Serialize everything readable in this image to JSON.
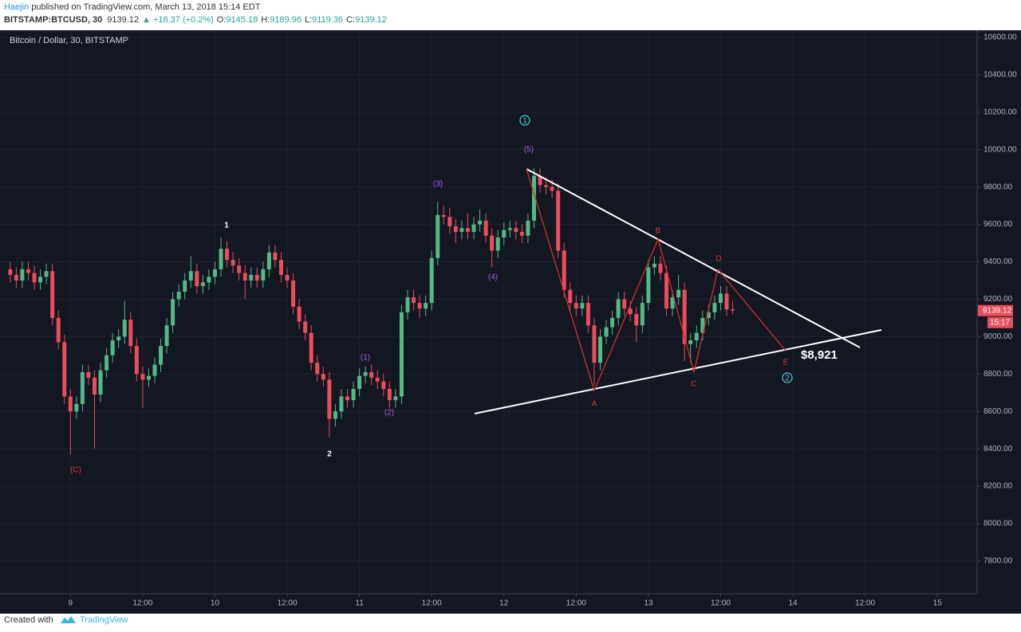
{
  "header": {
    "author": "Haejin",
    "published": " published on TradingView.com, March 13, 2018 15:14 EDT",
    "symbol": "BITSTAMP:BTCUSD, 30",
    "last": "9139.12",
    "change": "▲ +18.37 (+0.2%)",
    "o_label": "O:",
    "o": "9145.18",
    "h_label": "H:",
    "h": "9189.96",
    "l_label": "L:",
    "l": "9119.36",
    "c_label": "C:",
    "c": "9139.12"
  },
  "footer": {
    "text": "Created with",
    "brand": "TradingView"
  },
  "price_tag": {
    "price": "9139.12",
    "countdown": "15:17"
  },
  "annotations": [
    "1",
    "2",
    "(C)",
    "(1)",
    "(2)",
    "(3)",
    "(4)",
    "(5)",
    "1",
    "A",
    "B",
    "C",
    "D",
    "E",
    "2",
    "$8,921"
  ],
  "chart_data": {
    "type": "candlestick",
    "title": "Bitcoin / Dollar, 30, BITSTAMP",
    "up_color": "#53b987",
    "down_color": "#eb4d5c",
    "grid": true,
    "xlim": [
      -11.7,
      150.6
    ],
    "xticks": [
      {
        "value": 0,
        "label": "9"
      },
      {
        "value": 12,
        "label": "12:00"
      },
      {
        "value": 24,
        "label": "10"
      },
      {
        "value": 36,
        "label": "12:00"
      },
      {
        "value": 48,
        "label": "11"
      },
      {
        "value": 60,
        "label": "12:00"
      },
      {
        "value": 72,
        "label": "12"
      },
      {
        "value": 84,
        "label": "12:00"
      },
      {
        "value": 96,
        "label": "13"
      },
      {
        "value": 108,
        "label": "12:00"
      },
      {
        "value": 120,
        "label": "14"
      },
      {
        "value": 132,
        "label": "12:00"
      },
      {
        "value": 144,
        "label": "15"
      }
    ],
    "ylim": [
      7625,
      10638
    ],
    "yticks": [
      {
        "value": 7800,
        "label": "7800.00"
      },
      {
        "value": 8000,
        "label": "8000.00"
      },
      {
        "value": 8200,
        "label": "8200.00"
      },
      {
        "value": 8400,
        "label": "8400.00"
      },
      {
        "value": 8600,
        "label": "8600.00"
      },
      {
        "value": 8800,
        "label": "8800.00"
      },
      {
        "value": 9000,
        "label": "9000.00"
      },
      {
        "value": 9200,
        "label": "9200.00"
      },
      {
        "value": 9400,
        "label": "9400.00"
      },
      {
        "value": 9600,
        "label": "9600.00"
      },
      {
        "value": 9800,
        "label": "9800.00"
      },
      {
        "value": 10000,
        "label": "10000.00"
      },
      {
        "value": 10200,
        "label": "10200.00"
      },
      {
        "value": 10400,
        "label": "10400.00"
      },
      {
        "value": 10600,
        "label": "10600.00"
      }
    ],
    "x": [
      -10,
      -9,
      -8,
      -7,
      -6,
      -5,
      -4,
      -3,
      -2,
      -1,
      0,
      1,
      2,
      3,
      4,
      5,
      6,
      7,
      8,
      9,
      10,
      11,
      12,
      13,
      14,
      15,
      16,
      17,
      18,
      19,
      20,
      21,
      22,
      23,
      24,
      25,
      26,
      27,
      28,
      29,
      30,
      31,
      32,
      33,
      34,
      35,
      36,
      37,
      38,
      39,
      40,
      41,
      42,
      43,
      44,
      45,
      46,
      47,
      48,
      49,
      50,
      51,
      52,
      53,
      54,
      55,
      56,
      57,
      58,
      59,
      60,
      61,
      62,
      63,
      64,
      65,
      66,
      67,
      68,
      69,
      70,
      71,
      72,
      73,
      74,
      75,
      76,
      77,
      78,
      79,
      80,
      81,
      82,
      83,
      84,
      85,
      86,
      87,
      88,
      89,
      90,
      91,
      92,
      93,
      94,
      95,
      96,
      97,
      98,
      99,
      100,
      101,
      102,
      103,
      104,
      105,
      106,
      107,
      108,
      109,
      110
    ],
    "open": [
      9360,
      9330,
      9300,
      9360,
      9340,
      9290,
      9320,
      9350,
      9100,
      8970,
      8680,
      8600,
      8640,
      8810,
      8780,
      8690,
      8820,
      8900,
      8980,
      9000,
      9090,
      8950,
      8800,
      8770,
      8790,
      8850,
      8950,
      9060,
      9200,
      9240,
      9300,
      9350,
      9270,
      9290,
      9320,
      9360,
      9470,
      9410,
      9380,
      9340,
      9300,
      9330,
      9300,
      9360,
      9450,
      9410,
      9330,
      9300,
      9160,
      9080,
      9020,
      8860,
      8800,
      8770,
      8560,
      8600,
      8680,
      8660,
      8720,
      8790,
      8810,
      8780,
      8760,
      8720,
      8660,
      8680,
      9130,
      9210,
      9180,
      9150,
      9180,
      9420,
      9650,
      9640,
      9590,
      9560,
      9580,
      9560,
      9600,
      9620,
      9540,
      9460,
      9530,
      9570,
      9580,
      9560,
      9540,
      9620,
      9860,
      9810,
      9800,
      9780,
      9460,
      9250,
      9180,
      9150,
      9180,
      9060,
      8860,
      9000,
      9050,
      9100,
      9200,
      9150,
      9120,
      9060,
      9180,
      9370,
      9390,
      9340,
      9150,
      9210,
      9250,
      8960,
      8980,
      9020,
      9100,
      9130,
      9180,
      9230,
      9145.18
    ],
    "high": [
      9400,
      9370,
      9400,
      9400,
      9380,
      9360,
      9390,
      9390,
      9140,
      9010,
      8720,
      8680,
      8850,
      8850,
      8820,
      8860,
      8940,
      9020,
      9040,
      9190,
      9130,
      8990,
      8840,
      8830,
      8890,
      8990,
      9100,
      9240,
      9280,
      9340,
      9430,
      9390,
      9330,
      9360,
      9400,
      9530,
      9510,
      9450,
      9420,
      9380,
      9370,
      9370,
      9400,
      9490,
      9490,
      9450,
      9370,
      9340,
      9200,
      9120,
      9060,
      8900,
      8840,
      8810,
      8640,
      8720,
      8720,
      8760,
      8830,
      8840,
      8850,
      8820,
      8800,
      8760,
      8720,
      9170,
      9250,
      9250,
      9220,
      9220,
      9460,
      9720,
      9700,
      9690,
      9630,
      9620,
      9660,
      9640,
      9680,
      9660,
      9580,
      9570,
      9610,
      9620,
      9620,
      9600,
      9660,
      9900,
      9900,
      9850,
      9840,
      9820,
      9500,
      9290,
      9220,
      9220,
      9220,
      9100,
      9040,
      9090,
      9140,
      9240,
      9240,
      9190,
      9160,
      9220,
      9410,
      9430,
      9430,
      9380,
      9250,
      9330,
      9290,
      9020,
      9060,
      9140,
      9170,
      9220,
      9270,
      9270,
      9189.96
    ],
    "low": [
      9290,
      9260,
      9260,
      9300,
      9250,
      9250,
      9280,
      9060,
      8930,
      8640,
      8370,
      8560,
      8600,
      8740,
      8400,
      8650,
      8780,
      8860,
      8940,
      8960,
      8910,
      8760,
      8620,
      8730,
      8750,
      8810,
      8910,
      9020,
      9160,
      9200,
      9260,
      9230,
      9230,
      9250,
      9280,
      9320,
      9370,
      9340,
      9300,
      9200,
      9260,
      9260,
      9260,
      9320,
      9370,
      9290,
      9260,
      9120,
      9040,
      8980,
      8820,
      8760,
      8730,
      8460,
      8520,
      8560,
      8620,
      8620,
      8680,
      8750,
      8740,
      8720,
      8680,
      8620,
      8620,
      8640,
      9090,
      9140,
      9100,
      9110,
      9140,
      9380,
      9600,
      9550,
      9500,
      9520,
      9520,
      9520,
      9560,
      9500,
      9370,
      9420,
      9490,
      9530,
      9520,
      9500,
      9500,
      9580,
      9770,
      9760,
      9740,
      9420,
      9210,
      9140,
      9110,
      9110,
      9020,
      8740,
      8820,
      8960,
      9010,
      9060,
      9110,
      9080,
      8970,
      9020,
      9140,
      9330,
      9300,
      9110,
      9110,
      9170,
      8870,
      8860,
      8940,
      8980,
      9060,
      9090,
      9140,
      9110,
      9119.36
    ],
    "close": [
      9330,
      9300,
      9360,
      9340,
      9290,
      9320,
      9350,
      9100,
      8970,
      8680,
      8600,
      8640,
      8810,
      8780,
      8690,
      8820,
      8900,
      8980,
      9000,
      9090,
      8950,
      8800,
      8770,
      8790,
      8850,
      8950,
      9060,
      9200,
      9240,
      9300,
      9350,
      9270,
      9290,
      9320,
      9360,
      9470,
      9410,
      9380,
      9340,
      9300,
      9330,
      9300,
      9360,
      9450,
      9410,
      9330,
      9300,
      9160,
      9080,
      9020,
      8860,
      8800,
      8770,
      8560,
      8600,
      8680,
      8660,
      8720,
      8790,
      8810,
      8780,
      8760,
      8720,
      8660,
      8680,
      9130,
      9210,
      9180,
      9150,
      9180,
      9420,
      9650,
      9640,
      9590,
      9560,
      9580,
      9560,
      9600,
      9620,
      9540,
      9460,
      9530,
      9570,
      9580,
      9560,
      9540,
      9620,
      9860,
      9810,
      9800,
      9780,
      9460,
      9250,
      9180,
      9150,
      9180,
      9060,
      8860,
      9000,
      9050,
      9100,
      9200,
      9150,
      9120,
      9060,
      9180,
      9370,
      9390,
      9340,
      9150,
      9210,
      9250,
      8960,
      8980,
      9020,
      9100,
      9130,
      9180,
      9230,
      9145.18,
      9139.12
    ]
  }
}
